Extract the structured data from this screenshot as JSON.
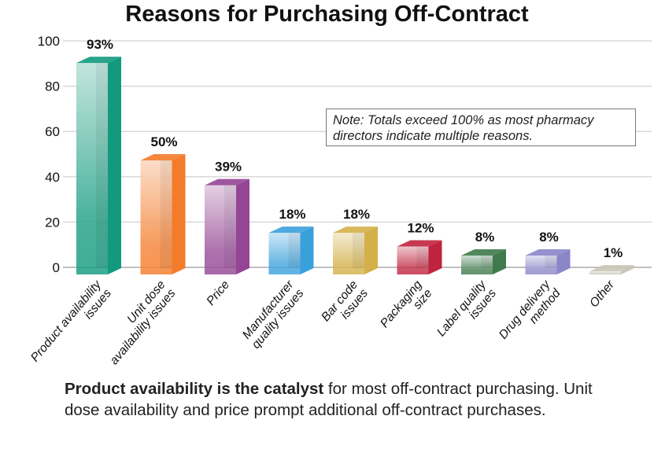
{
  "chart_data": {
    "type": "bar",
    "title": "Reasons for Purchasing Off-Contract",
    "categories": [
      [
        "Product availability",
        "issues"
      ],
      [
        "Unit dose",
        "availability issues"
      ],
      [
        "Price"
      ],
      [
        "Manufacturer",
        "quality issues"
      ],
      [
        "Bar code",
        "issues"
      ],
      [
        "Packaging",
        "size"
      ],
      [
        "Label quality",
        "issues"
      ],
      [
        "Drug delivery",
        "method"
      ],
      [
        "Other"
      ]
    ],
    "values": [
      93,
      50,
      39,
      18,
      18,
      12,
      8,
      8,
      1
    ],
    "data_labels": [
      "93%",
      "50%",
      "39%",
      "18%",
      "18%",
      "12%",
      "8%",
      "8%",
      "1%"
    ],
    "colors": [
      "#129a7e",
      "#f47b2a",
      "#944594",
      "#3aa0dc",
      "#d4b04a",
      "#c0233d",
      "#3e7a4a",
      "#8b86c8",
      "#c9c6b8"
    ],
    "ylim": [
      0,
      100
    ],
    "yticks": [
      0,
      20,
      40,
      60,
      80,
      100
    ],
    "grid": true,
    "style": "3d-bar",
    "xlabel": "",
    "ylabel": ""
  },
  "note": "Note: Totals exceed 100% as most pharmacy directors indicate multiple reasons.",
  "caption": {
    "bold": "Product availability is the catalyst",
    "rest": " for most off-contract purchasing. Unit dose availability and price prompt additional off-contract purchases."
  }
}
